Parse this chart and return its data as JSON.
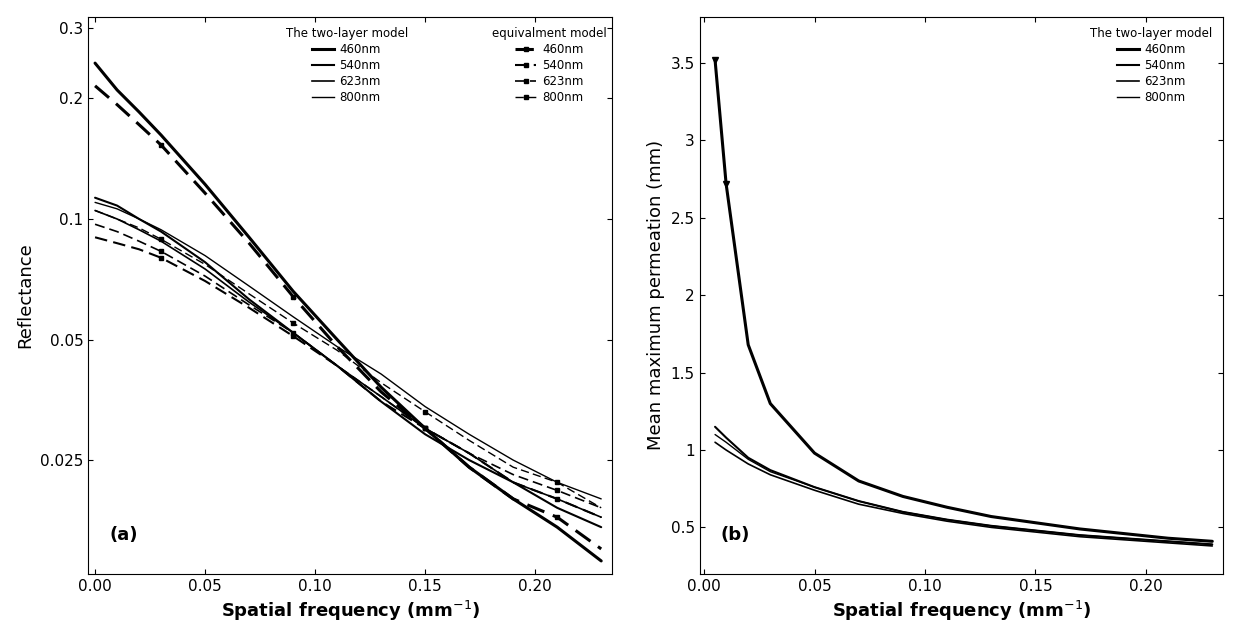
{
  "xlabel": "Spatial frequency (mm⁻¹)",
  "ylabel_a": "Reflectance",
  "ylabel_b": "Mean maximum permeation (mm)",
  "label_a": "(a)",
  "label_b": "(b)",
  "legend_title_solid": "The two-layer model",
  "legend_title_dashed": "equivalment model",
  "wavelengths": [
    "460nm",
    "540nm",
    "623nm",
    "800nm"
  ],
  "sf_a": [
    0,
    0.01,
    0.02,
    0.03,
    0.05,
    0.07,
    0.09,
    0.11,
    0.13,
    0.15,
    0.17,
    0.19,
    0.21,
    0.23
  ],
  "reflectance_solid": {
    "460nm": [
      0.245,
      0.21,
      0.185,
      0.162,
      0.122,
      0.09,
      0.066,
      0.05,
      0.038,
      0.03,
      0.024,
      0.02,
      0.017,
      0.014
    ],
    "540nm": [
      0.113,
      0.108,
      0.1,
      0.093,
      0.078,
      0.063,
      0.052,
      0.043,
      0.035,
      0.029,
      0.025,
      0.022,
      0.019,
      0.017
    ],
    "623nm": [
      0.105,
      0.1,
      0.094,
      0.088,
      0.075,
      0.062,
      0.052,
      0.043,
      0.036,
      0.03,
      0.026,
      0.022,
      0.02,
      0.018
    ],
    "800nm": [
      0.11,
      0.106,
      0.1,
      0.094,
      0.081,
      0.068,
      0.057,
      0.048,
      0.041,
      0.034,
      0.029,
      0.025,
      0.022,
      0.02
    ]
  },
  "reflectance_dashed": {
    "460nm": [
      0.215,
      0.193,
      0.172,
      0.153,
      0.116,
      0.087,
      0.064,
      0.048,
      0.037,
      0.03,
      0.024,
      0.02,
      0.018,
      0.015
    ],
    "540nm": [
      0.09,
      0.087,
      0.084,
      0.08,
      0.07,
      0.06,
      0.051,
      0.043,
      0.035,
      0.03,
      0.026,
      0.022,
      0.02,
      0.018
    ],
    "623nm": [
      0.097,
      0.093,
      0.088,
      0.083,
      0.072,
      0.061,
      0.052,
      0.043,
      0.036,
      0.03,
      0.026,
      0.023,
      0.021,
      0.019
    ],
    "800nm": [
      0.105,
      0.1,
      0.095,
      0.089,
      0.077,
      0.065,
      0.055,
      0.047,
      0.039,
      0.033,
      0.028,
      0.024,
      0.022,
      0.019
    ]
  },
  "sf_b": [
    0.005,
    0.01,
    0.02,
    0.03,
    0.05,
    0.07,
    0.09,
    0.11,
    0.13,
    0.15,
    0.17,
    0.19,
    0.21,
    0.23
  ],
  "permeation_solid": {
    "460nm": [
      3.52,
      2.72,
      1.68,
      1.3,
      0.98,
      0.8,
      0.7,
      0.63,
      0.57,
      0.53,
      0.49,
      0.46,
      0.43,
      0.41
    ],
    "540nm": [
      1.15,
      1.08,
      0.95,
      0.87,
      0.76,
      0.67,
      0.6,
      0.55,
      0.51,
      0.48,
      0.45,
      0.43,
      0.41,
      0.39
    ],
    "623nm": [
      1.05,
      1.0,
      0.91,
      0.84,
      0.74,
      0.65,
      0.59,
      0.54,
      0.5,
      0.47,
      0.44,
      0.42,
      0.4,
      0.38
    ],
    "800nm": [
      1.1,
      1.05,
      0.94,
      0.86,
      0.76,
      0.67,
      0.6,
      0.55,
      0.51,
      0.48,
      0.45,
      0.43,
      0.41,
      0.39
    ]
  },
  "line_widths": {
    "460nm": 2.2,
    "540nm": 1.5,
    "623nm": 1.2,
    "800nm": 1.0
  },
  "line_color": "#000000",
  "background_color": "#ffffff",
  "tick_direction": "in",
  "xlim_a": [
    -0.003,
    0.235
  ],
  "xlim_b": [
    -0.002,
    0.235
  ],
  "ylim_a_log": [
    0.013,
    0.32
  ],
  "ylim_b": [
    0.2,
    3.8
  ],
  "xticks_a": [
    0,
    0.05,
    0.1,
    0.15,
    0.2
  ],
  "xticks_b": [
    0,
    0.05,
    0.1,
    0.15,
    0.2
  ],
  "yticks_a": [
    0.025,
    0.05,
    0.1,
    0.2,
    0.3
  ],
  "yticks_b": [
    0.5,
    1.0,
    1.5,
    2.0,
    2.5,
    3.0,
    3.5
  ]
}
